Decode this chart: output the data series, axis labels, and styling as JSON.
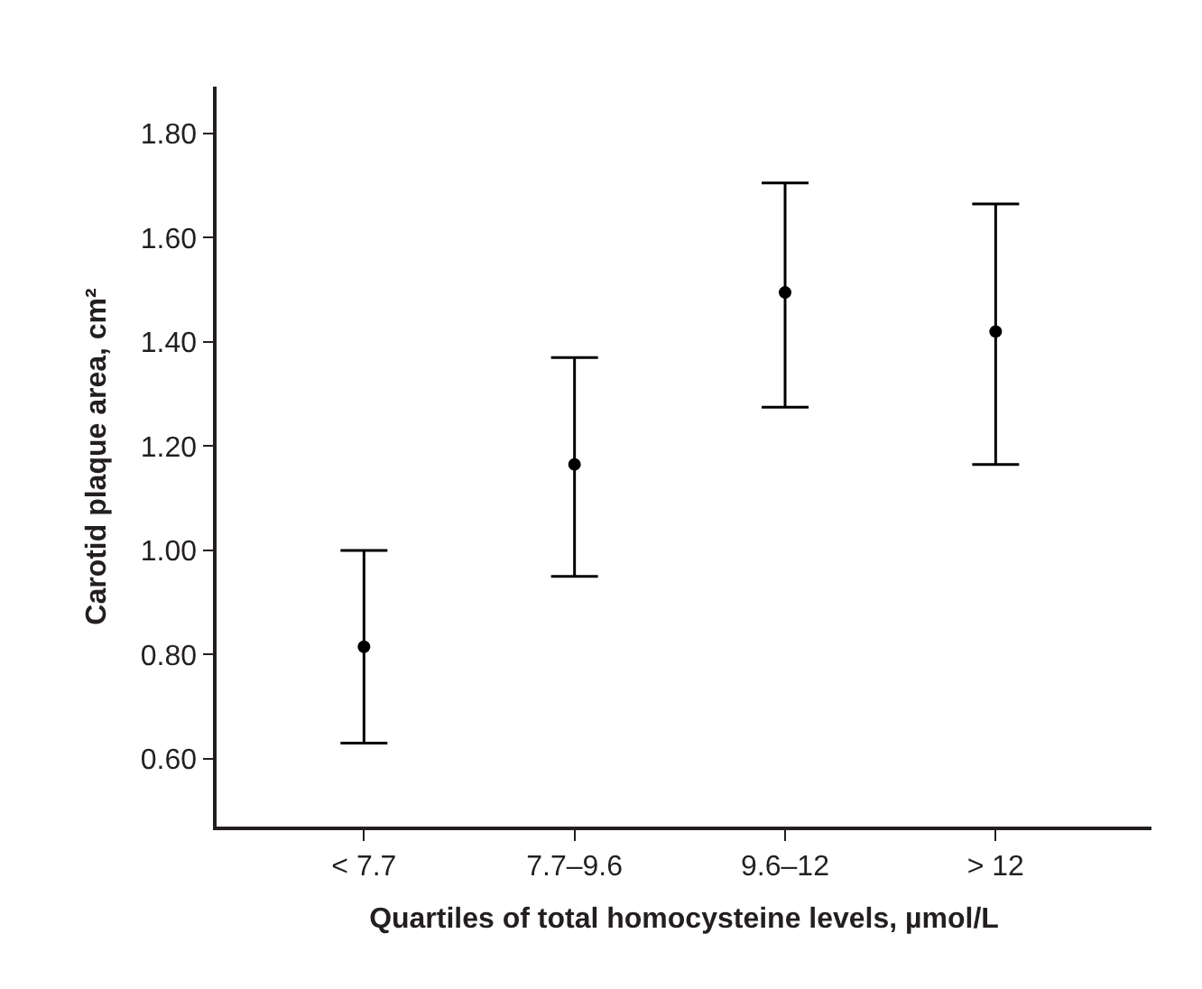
{
  "chart_data": {
    "type": "scatter",
    "xlabel": "Quartiles of total homocysteine levels, µmol/L",
    "ylabel": "Carotid plaque area, cm²",
    "categories": [
      "< 7.7",
      "7.7–9.6",
      "9.6–12",
      "> 12"
    ],
    "series": [
      {
        "color": "#000000",
        "values": [
          0.815,
          1.165,
          1.495,
          1.42
        ],
        "errors": [
          [
            0.63,
            1.0
          ],
          [
            0.95,
            1.37
          ],
          [
            1.275,
            1.705
          ],
          [
            1.165,
            1.665
          ]
        ]
      }
    ],
    "ylim": [
      0.47,
      1.89
    ],
    "yticks": [
      {
        "value": 0.6,
        "label": "0.60"
      },
      {
        "value": 0.8,
        "label": "0.80"
      },
      {
        "value": 1.0,
        "label": "1.00"
      },
      {
        "value": 1.2,
        "label": "1.20"
      },
      {
        "value": 1.4,
        "label": "1.40"
      },
      {
        "value": 1.6,
        "label": "1.60"
      },
      {
        "value": 1.8,
        "label": "1.80"
      }
    ],
    "marker": "circle"
  }
}
